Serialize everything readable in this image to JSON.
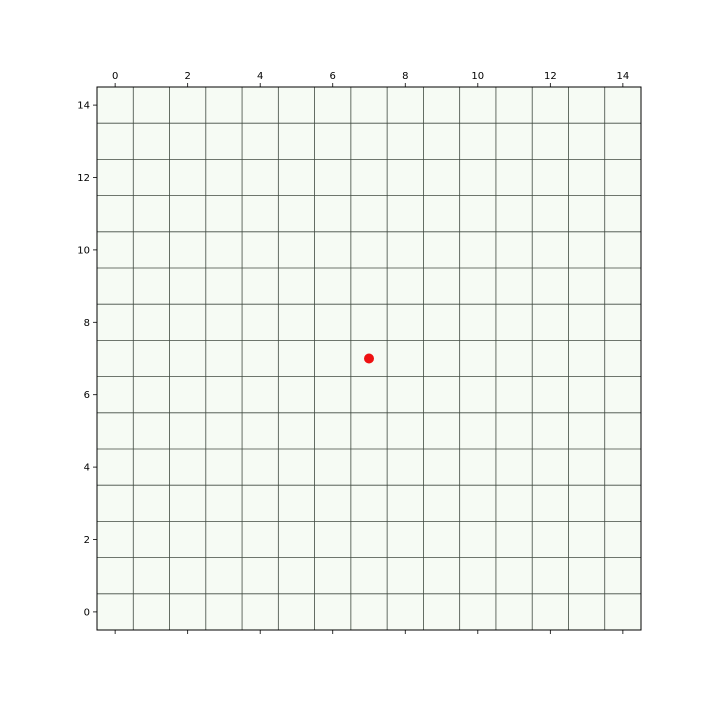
{
  "chart_data": {
    "type": "scatter",
    "title": "",
    "xlabel": "",
    "ylabel": "",
    "xlim": [
      -0.5,
      14.5
    ],
    "ylim": [
      -0.5,
      14.5
    ],
    "x_ticks": [
      0,
      2,
      4,
      6,
      8,
      10,
      12,
      14
    ],
    "y_ticks": [
      0,
      2,
      4,
      6,
      8,
      10,
      12,
      14
    ],
    "x_tick_labels": [
      "0",
      "2",
      "4",
      "6",
      "8",
      "10",
      "12",
      "14"
    ],
    "y_tick_labels": [
      "0",
      "2",
      "4",
      "6",
      "8",
      "10",
      "12",
      "14"
    ],
    "x_axis_position": "top",
    "grid": true,
    "grid_cells": 15,
    "points": [
      {
        "x": 7,
        "y": 7
      }
    ],
    "colors": {
      "cell_fill": "#f6fbf4",
      "grid_line": "#404a40",
      "point": "#ee1111",
      "axis": "#000000"
    }
  }
}
